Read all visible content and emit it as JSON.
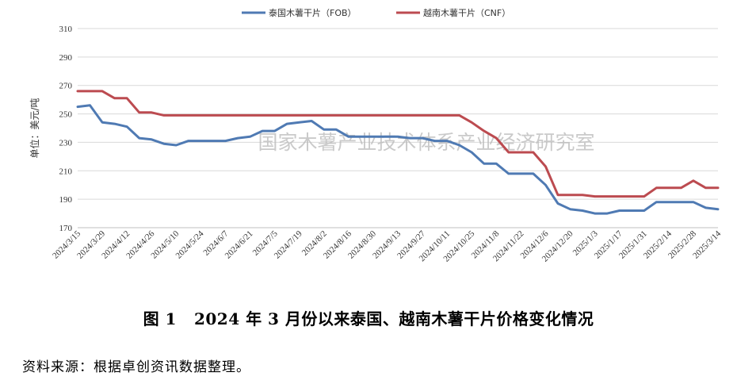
{
  "chart_data": {
    "type": "line",
    "title": "",
    "xlabel": "",
    "ylabel": "单位：美元/吨",
    "ylim": [
      170,
      310
    ],
    "yticks": [
      170,
      190,
      210,
      230,
      250,
      270,
      290,
      310
    ],
    "grid": true,
    "legend_position": "top-center",
    "watermark": "国家木薯产业技术体系产业经济研究室",
    "x": [
      "2024/3/15",
      "2024/3/22",
      "2024/3/29",
      "2024/4/5",
      "2024/4/12",
      "2024/4/19",
      "2024/4/26",
      "2024/5/3",
      "2024/5/10",
      "2024/5/17",
      "2024/5/24",
      "2024/5/31",
      "2024/6/7",
      "2024/6/14",
      "2024/6/21",
      "2024/6/28",
      "2024/7/5",
      "2024/7/12",
      "2024/7/19",
      "2024/7/26",
      "2024/8/2",
      "2024/8/9",
      "2024/8/16",
      "2024/8/23",
      "2024/8/30",
      "2024/9/6",
      "2024/9/13",
      "2024/9/20",
      "2024/9/27",
      "2024/10/4",
      "2024/10/11",
      "2024/10/18",
      "2024/10/25",
      "2024/11/1",
      "2024/11/8",
      "2024/11/15",
      "2024/11/22",
      "2024/11/29",
      "2024/12/6",
      "2024/12/13",
      "2024/12/20",
      "2024/12/27",
      "2025/1/3",
      "2025/1/10",
      "2025/1/17",
      "2025/1/24",
      "2025/1/31",
      "2025/2/7",
      "2025/2/14",
      "2025/2/21",
      "2025/2/28",
      "2025/3/7",
      "2025/3/14"
    ],
    "xtick_labels": [
      "2024/3/15",
      "2024/3/29",
      "2024/4/12",
      "2024/4/26",
      "2024/5/10",
      "2024/5/24",
      "2024/6/7",
      "2024/6/21",
      "2024/7/5",
      "2024/7/19",
      "2024/8/2",
      "2024/8/16",
      "2024/8/30",
      "2024/9/13",
      "2024/9/27",
      "2024/10/11",
      "2024/10/25",
      "2024/11/8",
      "2024/11/22",
      "2024/12/6",
      "2024/12/20",
      "2025/1/3",
      "2025/1/17",
      "2025/1/31",
      "2025/2/14",
      "2025/2/28",
      "2025/3/14"
    ],
    "series": [
      {
        "name": "泰国木薯干片（FOB）",
        "color": "#4f7ab3",
        "values": [
          255,
          256,
          244,
          243,
          241,
          233,
          232,
          229,
          228,
          231,
          231,
          231,
          231,
          233,
          234,
          238,
          238,
          243,
          244,
          245,
          239,
          239,
          234,
          234,
          234,
          234,
          234,
          233,
          233,
          231,
          231,
          228,
          223,
          215,
          215,
          208,
          208,
          208,
          200,
          187,
          183,
          182,
          180,
          180,
          182,
          182,
          182,
          188,
          188,
          188,
          188,
          184,
          183
        ]
      },
      {
        "name": "越南木薯干片（CNF）",
        "color": "#bc4b50",
        "values": [
          266,
          266,
          266,
          261,
          261,
          251,
          251,
          249,
          249,
          249,
          249,
          249,
          249,
          249,
          249,
          249,
          249,
          249,
          249,
          249,
          249,
          249,
          249,
          249,
          249,
          249,
          249,
          249,
          249,
          249,
          249,
          249,
          244,
          238,
          233,
          223,
          223,
          223,
          213,
          193,
          193,
          193,
          192,
          192,
          192,
          192,
          192,
          198,
          198,
          198,
          203,
          198,
          198
        ]
      }
    ]
  },
  "caption": {
    "figure_num": "图 1",
    "text": "2024 年 3 月份以来泰国、越南木薯干片价格变化情况"
  },
  "source_note": "资料来源：根据卓创资讯数据整理。"
}
